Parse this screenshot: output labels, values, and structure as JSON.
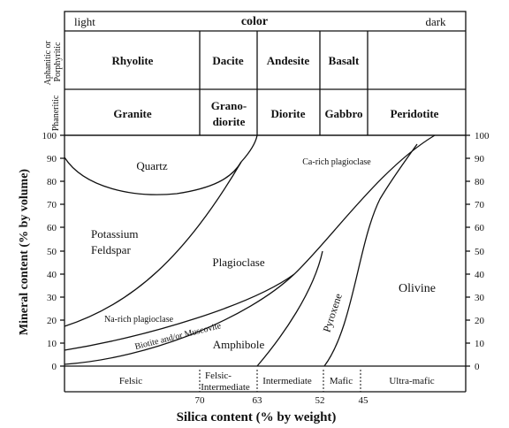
{
  "header": {
    "light": "light",
    "color": "color",
    "dark": "dark",
    "row_aphanitic": [
      "Aphanitic or",
      "Porphyritic"
    ],
    "row_phaneritic": "Phaneritic"
  },
  "rocks": {
    "aphanitic": [
      "Rhyolite",
      "Dacite",
      "Andesite",
      "Basalt"
    ],
    "phaneritic": [
      "Granite",
      "Grano-",
      "diorite",
      "Diorite",
      "Gabbro",
      "Peridotite"
    ]
  },
  "minerals": {
    "quartz": "Quartz",
    "potassium": "Potassium",
    "feldspar": "Feldspar",
    "plagioclase": "Plagioclase",
    "ca_rich": "Ca-rich plagioclase",
    "na_rich": "Na-rich plagioclase",
    "biotite": "Biotite and/or Muscovite",
    "amphibole": "Amphibole",
    "pyroxene": "Pyroxene",
    "olivine": "Olivine"
  },
  "axes": {
    "ylabel": "Mineral content  (% by volume)",
    "xlabel": "Silica content (% by weight)",
    "yticks": [
      "0",
      "10",
      "20",
      "30",
      "40",
      "50",
      "60",
      "70",
      "80",
      "90",
      "100"
    ],
    "xticks": [
      "70",
      "63",
      "52",
      "45"
    ]
  },
  "categories": [
    "Felsic",
    "Felsic-",
    "Intermediate",
    "Intermediate",
    "Mafic",
    "Ultra-mafic"
  ]
}
